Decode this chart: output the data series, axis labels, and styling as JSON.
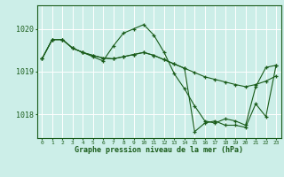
{
  "bg_color": "#cceee8",
  "line_color": "#1a5c1a",
  "grid_color": "#ffffff",
  "xlabel": "Graphe pression niveau de la mer (hPa)",
  "xlabel_color": "#1a5c1a",
  "ylabel_ticks": [
    1018,
    1019,
    1020
  ],
  "xlim": [
    -0.5,
    23.5
  ],
  "ylim": [
    1017.45,
    1020.55
  ],
  "xticks": [
    0,
    1,
    2,
    3,
    4,
    5,
    6,
    7,
    8,
    9,
    10,
    11,
    12,
    13,
    14,
    15,
    16,
    17,
    18,
    19,
    20,
    21,
    22,
    23
  ],
  "series": [
    {
      "x": [
        0,
        1,
        2,
        3,
        4,
        5,
        6,
        7,
        8,
        9,
        10,
        11,
        12,
        13,
        14,
        15,
        16,
        17,
        18,
        19,
        20,
        21,
        22,
        23
      ],
      "y": [
        1019.3,
        1019.75,
        1019.75,
        1019.55,
        1019.45,
        1019.35,
        1019.25,
        1019.6,
        1019.9,
        1020.0,
        1020.1,
        1019.85,
        1019.45,
        1018.95,
        1018.6,
        1018.2,
        1017.85,
        1017.8,
        1017.9,
        1017.85,
        1017.75,
        1018.65,
        1019.1,
        1019.15
      ]
    },
    {
      "x": [
        0,
        1,
        2,
        3,
        4,
        5,
        6,
        7,
        8,
        9,
        10,
        11,
        12,
        13,
        14,
        15,
        16,
        17,
        18,
        19,
        20,
        21,
        22,
        23
      ],
      "y": [
        1019.3,
        1019.75,
        1019.75,
        1019.55,
        1019.45,
        1019.38,
        1019.32,
        1019.3,
        1019.35,
        1019.4,
        1019.45,
        1019.38,
        1019.28,
        1019.18,
        1019.08,
        1018.98,
        1018.88,
        1018.82,
        1018.76,
        1018.7,
        1018.65,
        1018.7,
        1018.78,
        1018.9
      ]
    },
    {
      "x": [
        0,
        1,
        2,
        3,
        4,
        5,
        6,
        7,
        8,
        9,
        10,
        11,
        12,
        13,
        14,
        15,
        16,
        17,
        18,
        19,
        20,
        21,
        22,
        23
      ],
      "y": [
        1019.3,
        1019.75,
        1019.75,
        1019.55,
        1019.45,
        1019.38,
        1019.32,
        1019.3,
        1019.35,
        1019.4,
        1019.45,
        1019.38,
        1019.28,
        1019.18,
        1019.08,
        1017.6,
        1017.8,
        1017.85,
        1017.75,
        1017.75,
        1017.7,
        1018.25,
        1017.95,
        1019.15
      ]
    }
  ]
}
